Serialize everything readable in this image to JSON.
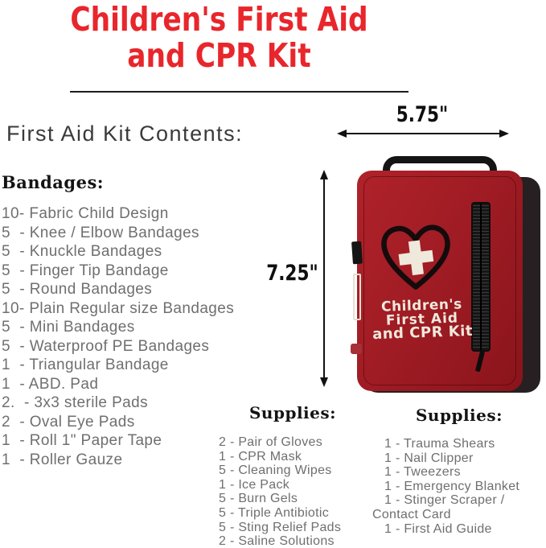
{
  "title": {
    "line1": "Children's First Aid",
    "line2": "and CPR Kit"
  },
  "contents_heading": "First Aid Kit Contents:",
  "bandages": {
    "heading": "Bandages:",
    "items": [
      "10- Fabric Child Design",
      "5  - Knee / Elbow Bandages",
      "5  - Knuckle Bandages",
      "5  - Finger Tip Bandage",
      "5  - Round Bandages",
      "10- Plain Regular size Bandages",
      "5  - Mini Bandages",
      "5  - Waterproof PE Bandages",
      "1  - Triangular Bandage",
      "1  - ABD. Pad",
      "2.  - 3x3 sterile Pads",
      "2  - Oval Eye Pads",
      "1  - Roll 1\" Paper Tape",
      "1  - Roller Gauze"
    ]
  },
  "supplies_middle": {
    "heading": "Supplies:",
    "items": [
      "2 - Pair of Gloves",
      "1 - CPR Mask",
      "5 - Cleaning Wipes",
      "1 - Ice Pack",
      "5 - Burn Gels",
      "5 - Triple Antibiotic",
      "5 - Sting Relief Pads",
      "2 - Saline Solutions"
    ]
  },
  "supplies_right": {
    "heading": "Supplies:",
    "items": [
      "1 - Trauma Shears",
      "1 - Nail Clipper",
      "1 - Tweezers",
      "1 - Emergency Blanket",
      "1 - Stinger Scraper /\nContact Card",
      "1 - First Aid Guide"
    ]
  },
  "dimensions": {
    "width_label": "5.75\"",
    "height_label": "7.25\""
  },
  "bag": {
    "text_line1": "Children's",
    "text_line2": "First Aid",
    "text_line3": "and CPR Kit"
  },
  "colors": {
    "title_red": "#e8262b",
    "bag_red": "#a01c24",
    "list_gray": "#6f6f6f",
    "arrow_black": "#111111"
  }
}
